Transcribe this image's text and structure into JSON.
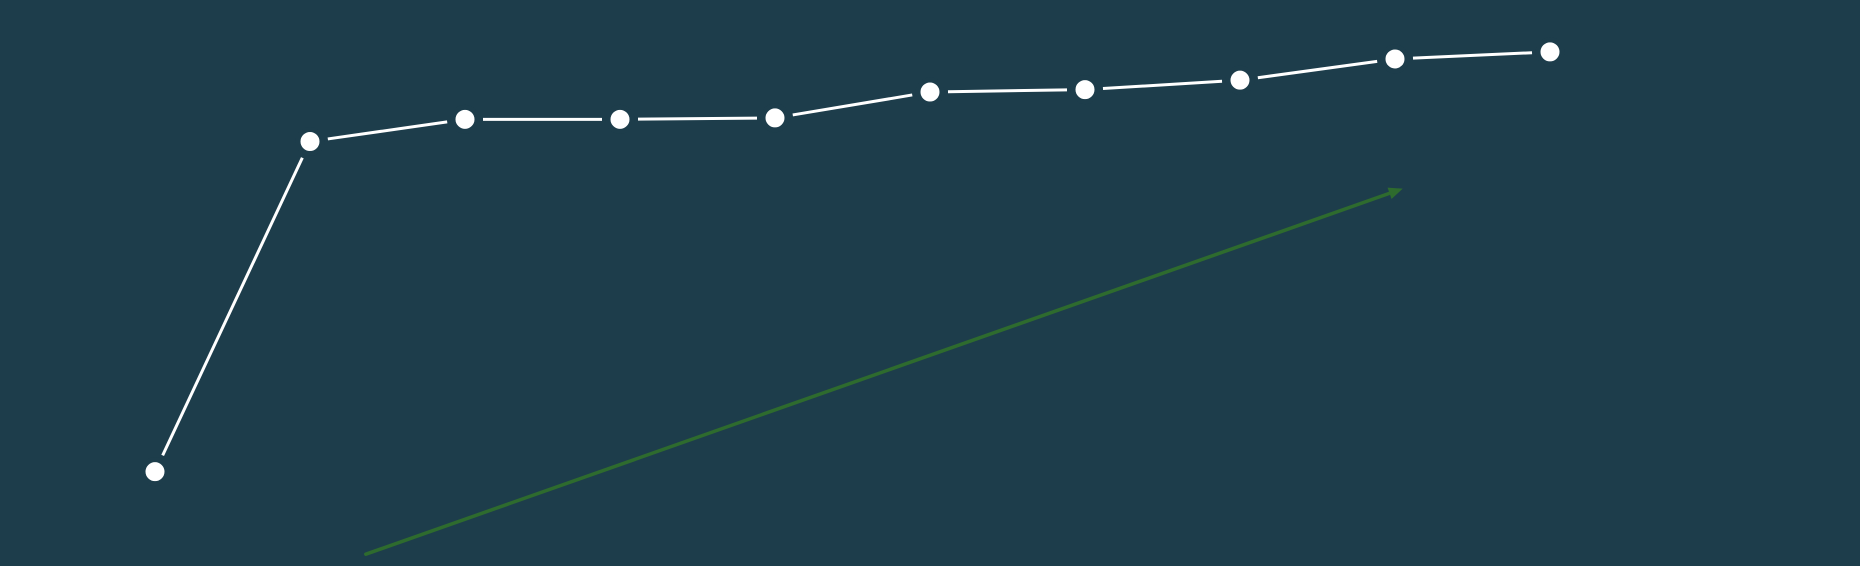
{
  "colors": {
    "background": "#1d3d4b",
    "series": "#ffffff",
    "trend_arrow": "#2e6b2e"
  },
  "chart_data": {
    "type": "line",
    "title": "",
    "xlabel": "",
    "ylabel": "",
    "grid": false,
    "axes_visible": false,
    "legend": "none",
    "x": [
      1,
      2,
      3,
      4,
      5,
      6,
      7,
      8,
      9,
      10
    ],
    "series": [
      {
        "values": [
          20,
          90,
          94.7,
          94.7,
          95,
          100.5,
          101,
          103,
          107.5,
          109
        ]
      }
    ],
    "xlim": [
      0,
      12
    ],
    "ylim": [
      0,
      120
    ],
    "annotations": [
      {
        "type": "trend-arrow",
        "from": [
          2.36,
          2.5
        ],
        "to": [
          9.05,
          80
        ]
      }
    ]
  }
}
